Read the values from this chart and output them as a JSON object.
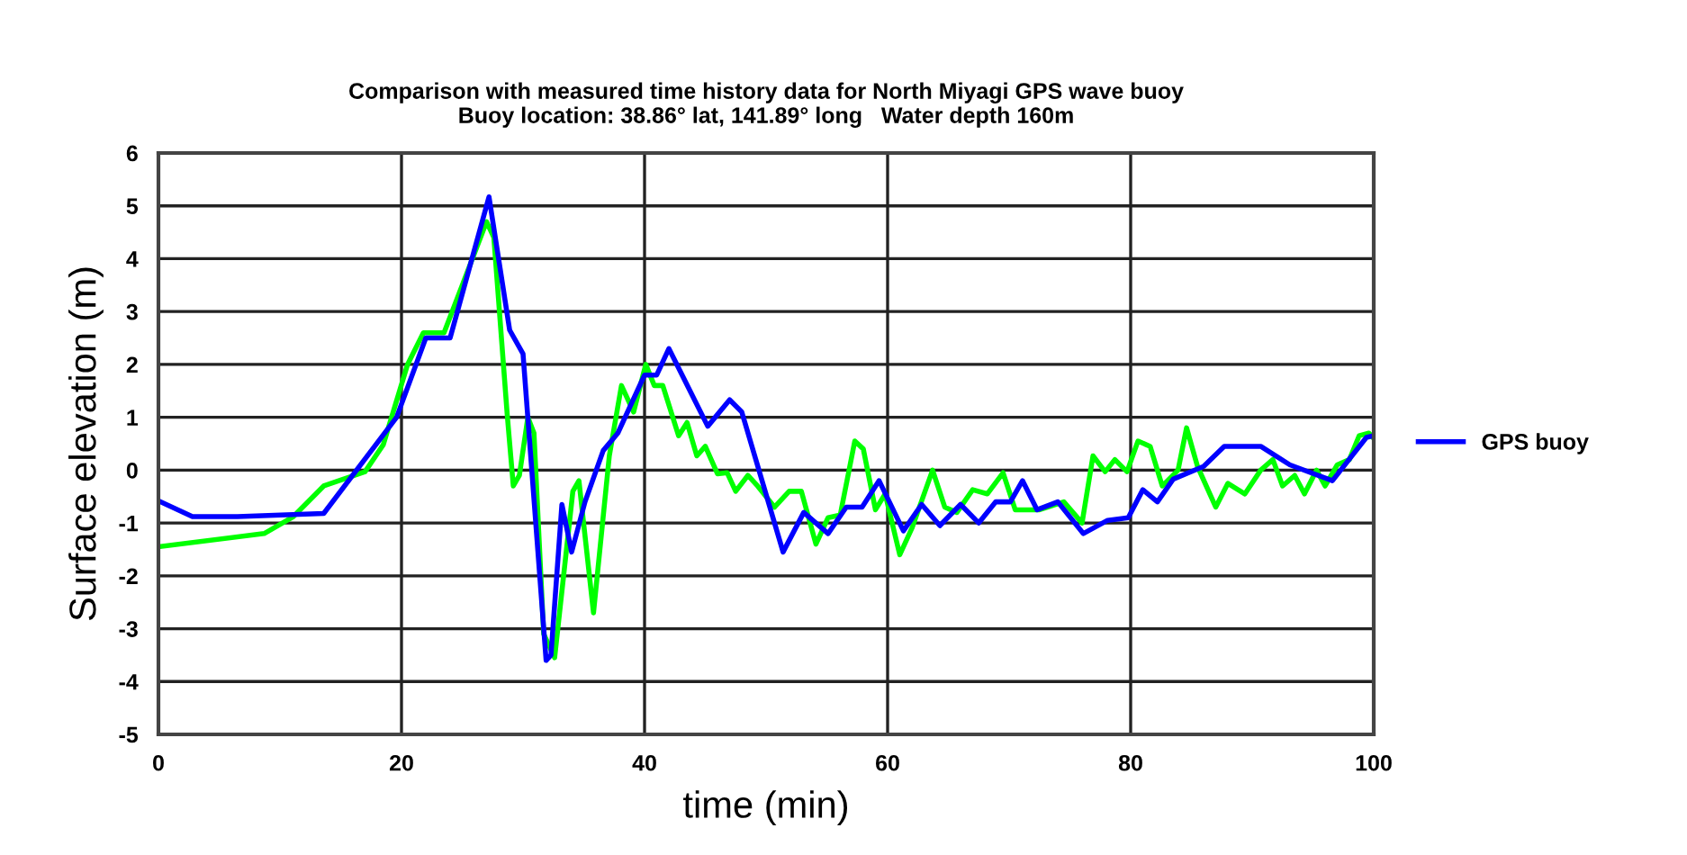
{
  "chart_data": {
    "type": "line",
    "title": "Comparison with measured time history data for North Miyagi GPS wave buoy\nBuoy location: 38.86° lat, 141.89° long   Water depth 160m",
    "xlabel": "time (min)",
    "ylabel": "Surface elevation (m)",
    "xlim": [
      0,
      100
    ],
    "xticks": [
      0,
      20,
      40,
      60,
      80,
      100
    ],
    "ylim": [
      -5,
      6
    ],
    "yticks": [
      -5,
      -4,
      -3,
      -2,
      -1,
      0,
      1,
      2,
      3,
      4,
      5,
      6
    ],
    "grid": true,
    "legend": "right",
    "series": [
      {
        "color": "#00ff00",
        "x": [
          0,
          8.7,
          11.1,
          13.6,
          17,
          18.5,
          20.5,
          21.8,
          23.5,
          27,
          27.6,
          28.7,
          29.2,
          29.7,
          30.4,
          30.9,
          31.7,
          32.6,
          34.1,
          34.6,
          35.8,
          37.1,
          38.1,
          39.1,
          40.1,
          40.8,
          41.5,
          42.8,
          43.5,
          44.3,
          45,
          46,
          46.8,
          47.5,
          48.5,
          49.3,
          50.7,
          51.9,
          52.9,
          54.1,
          55.1,
          56.1,
          57.3,
          58,
          59,
          59.8,
          61,
          62,
          63.7,
          64.7,
          65.7,
          67,
          68.2,
          69.5,
          70.5,
          72.5,
          74.5,
          76,
          76.9,
          77.9,
          78.7,
          79.7,
          80.6,
          81.6,
          82.6,
          83.9,
          84.6,
          85.5,
          87,
          88,
          89.4,
          90.7,
          91.7,
          92.5,
          93.5,
          94.3,
          95.3,
          96,
          97,
          98,
          98.8,
          99.6,
          100
        ],
        "values": [
          -1.45,
          -1.2,
          -0.88,
          -0.3,
          -0.03,
          0.48,
          2.0,
          2.6,
          2.6,
          4.7,
          4.4,
          1.05,
          -0.3,
          -0.1,
          1.0,
          0.7,
          -3.1,
          -3.55,
          -0.4,
          -0.2,
          -2.7,
          0.27,
          1.6,
          1.1,
          2.0,
          1.6,
          1.6,
          0.65,
          0.9,
          0.27,
          0.45,
          -0.07,
          -0.05,
          -0.4,
          -0.1,
          -0.3,
          -0.7,
          -0.4,
          -0.4,
          -1.4,
          -0.9,
          -0.85,
          0.55,
          0.4,
          -0.75,
          -0.45,
          -1.6,
          -1.1,
          0,
          -0.7,
          -0.8,
          -0.37,
          -0.45,
          -0.05,
          -0.75,
          -0.75,
          -0.6,
          -1.0,
          0.27,
          -0.03,
          0.2,
          -0.03,
          0.55,
          0.45,
          -0.3,
          0,
          0.8,
          0.07,
          -0.7,
          -0.25,
          -0.45,
          0,
          0.2,
          -0.3,
          -0.1,
          -0.45,
          0,
          -0.3,
          0.1,
          0.2,
          0.65,
          0.7,
          0.6
        ]
      },
      {
        "name": "GPS buoy",
        "color": "#0000ff",
        "x": [
          0,
          2.8,
          6.5,
          13.6,
          19.6,
          22,
          24,
          27.2,
          28.9,
          30,
          31.9,
          32.3,
          33.2,
          34,
          35.1,
          36.6,
          37.8,
          40,
          41,
          42,
          45.2,
          47,
          48,
          51.4,
          53.1,
          55.1,
          56.6,
          57.9,
          59.3,
          61.3,
          62.8,
          64.3,
          66,
          67.5,
          68.9,
          70.1,
          71.1,
          72.3,
          74,
          76.1,
          78.1,
          79.8,
          81,
          82.2,
          83.5,
          86,
          87.7,
          90.7,
          93.1,
          96.6,
          99.4,
          100
        ],
        "values": [
          -0.58,
          -0.88,
          -0.88,
          -0.82,
          1.0,
          2.5,
          2.5,
          5.17,
          2.65,
          2.2,
          -3.6,
          -3.5,
          -0.65,
          -1.55,
          -0.6,
          0.37,
          0.7,
          1.8,
          1.8,
          2.3,
          0.83,
          1.33,
          1.1,
          -1.55,
          -0.8,
          -1.2,
          -0.7,
          -0.7,
          -0.2,
          -1.15,
          -0.65,
          -1.05,
          -0.65,
          -1.0,
          -0.6,
          -0.6,
          -0.2,
          -0.75,
          -0.6,
          -1.2,
          -0.95,
          -0.9,
          -0.37,
          -0.6,
          -0.17,
          0.07,
          0.45,
          0.45,
          0.1,
          -0.2,
          0.62,
          0.65
        ]
      }
    ]
  }
}
